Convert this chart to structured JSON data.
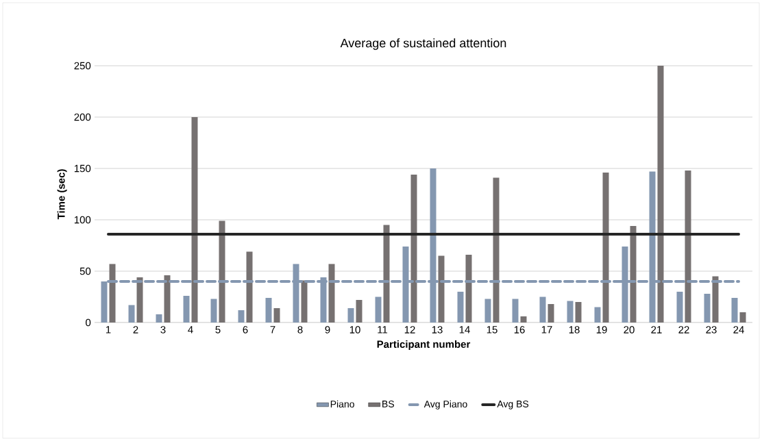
{
  "chart_data": {
    "type": "bar",
    "title": "Average of sustained attention",
    "xlabel": "Participant number",
    "ylabel": "Time (sec)",
    "categories": [
      "1",
      "2",
      "3",
      "4",
      "5",
      "6",
      "7",
      "8",
      "9",
      "10",
      "11",
      "12",
      "13",
      "14",
      "15",
      "16",
      "17",
      "18",
      "19",
      "20",
      "21",
      "22",
      "23",
      "24"
    ],
    "series": [
      {
        "name": "Piano",
        "color": "#8497b0",
        "values": [
          40,
          17,
          8,
          26,
          23,
          12,
          24,
          57,
          44,
          14,
          25,
          74,
          150,
          30,
          23,
          23,
          25,
          21,
          15,
          74,
          147,
          30,
          28,
          24
        ]
      },
      {
        "name": "BS",
        "color": "#767171",
        "values": [
          57,
          44,
          46,
          200,
          99,
          69,
          14,
          41,
          57,
          22,
          95,
          144,
          65,
          66,
          141,
          6,
          18,
          20,
          146,
          94,
          250,
          148,
          45,
          10
        ]
      },
      {
        "name": "Avg Piano",
        "type": "line",
        "line_style": "dashed",
        "color": "#8497b0",
        "values": [
          40,
          40,
          40,
          40,
          40,
          40,
          40,
          40,
          40,
          40,
          40,
          40,
          40,
          40,
          40,
          40,
          40,
          40,
          40,
          40,
          40,
          40,
          40,
          40
        ]
      },
      {
        "name": "Avg BS",
        "type": "line",
        "line_style": "solid",
        "color": "#262626",
        "values": [
          86,
          86,
          86,
          86,
          86,
          86,
          86,
          86,
          86,
          86,
          86,
          86,
          86,
          86,
          86,
          86,
          86,
          86,
          86,
          86,
          86,
          86,
          86,
          86
        ]
      }
    ],
    "ylim": [
      0,
      250
    ],
    "yticks": [
      0,
      50,
      100,
      150,
      200,
      250
    ],
    "grid": "y",
    "legend": "bottom"
  }
}
